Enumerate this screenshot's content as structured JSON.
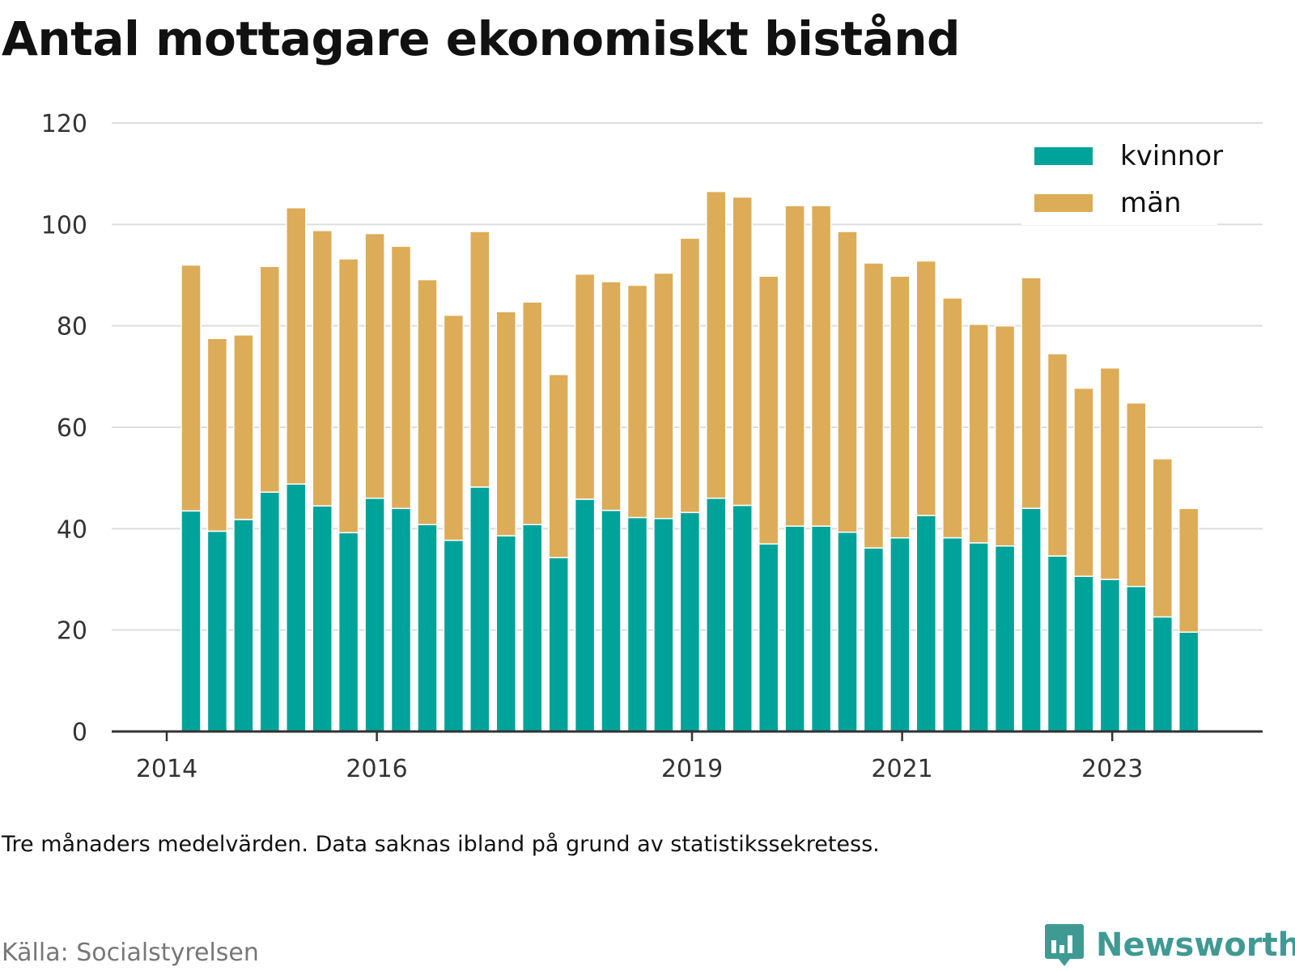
{
  "title": "Antal mottagare ekonomiskt bistånd",
  "note": "Tre månaders medelvärden. Data saknas ibland på grund av statistikssekretess.",
  "source": "Källa: Socialstyrelsen",
  "brand": "Newsworthy",
  "colors": {
    "kvinnor": "#00a39a",
    "man": "#dcac58",
    "grid": "#dddddd",
    "axis": "#333333",
    "brand": "#3f9a93"
  },
  "chart_data": {
    "type": "bar",
    "stacked": true,
    "ylim": [
      0,
      120
    ],
    "yticks": [
      0,
      20,
      40,
      60,
      80,
      100,
      120
    ],
    "xtick_labels": [
      "2014",
      "2016",
      "2019",
      "2021",
      "2023"
    ],
    "xtick_years": [
      2014,
      2016,
      2019,
      2021,
      2023
    ],
    "legend_position": "top-right",
    "grid": true,
    "series": [
      {
        "name": "kvinnor",
        "values": [
          43.5,
          39.5,
          41.8,
          47.2,
          48.8,
          44.5,
          39.2,
          46.0,
          44.0,
          40.8,
          37.7,
          48.2,
          38.6,
          40.8,
          34.3,
          45.8,
          43.6,
          42.2,
          42.0,
          43.2,
          46.0,
          44.6,
          37.0,
          40.5,
          40.5,
          39.3,
          36.2,
          38.2,
          42.6,
          38.2,
          37.2,
          36.6,
          44.0,
          34.6,
          30.6,
          30.0,
          28.6,
          22.6,
          19.6
        ]
      },
      {
        "name": "män",
        "values": [
          48.5,
          38.0,
          36.4,
          44.5,
          54.5,
          54.3,
          54.0,
          52.2,
          51.7,
          48.3,
          44.4,
          50.4,
          44.2,
          43.9,
          36.1,
          44.4,
          45.1,
          45.8,
          48.4,
          54.1,
          60.5,
          60.8,
          52.8,
          63.2,
          63.2,
          59.3,
          56.2,
          51.6,
          50.2,
          47.3,
          43.1,
          43.4,
          45.5,
          39.9,
          37.1,
          41.7,
          36.2,
          31.2,
          24.4
        ]
      }
    ]
  }
}
